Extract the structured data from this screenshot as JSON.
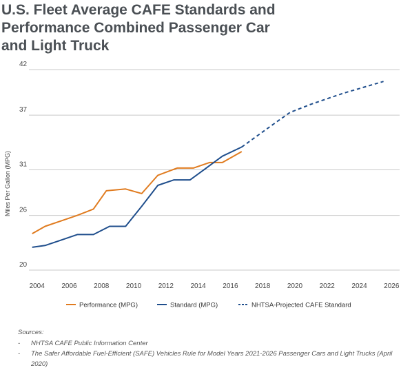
{
  "title_lines": [
    "U.S. Fleet Average CAFE Standards and",
    "Performance Combined Passenger Car",
    "and Light Truck"
  ],
  "chart_data": {
    "type": "line",
    "ylabel": "Miles Per Gallon (MPG)",
    "xlim": [
      2003.5,
      2026.5
    ],
    "ylim": [
      20,
      42
    ],
    "yticks": [
      20,
      26,
      31,
      37,
      42
    ],
    "xticks": [
      2004,
      2006,
      2008,
      2010,
      2012,
      2014,
      2016,
      2018,
      2020,
      2022,
      2024,
      2026
    ],
    "grid": "horizontal",
    "legend_position": "bottom",
    "series": [
      {
        "name": "Performance (MPG)",
        "color": "#e07b1f",
        "style": "solid",
        "points": [
          [
            2003.7,
            24.0
          ],
          [
            2004.5,
            24.8
          ],
          [
            2005.5,
            25.4
          ],
          [
            2006.5,
            26.0
          ],
          [
            2007.5,
            26.7
          ],
          [
            2008.3,
            28.7
          ],
          [
            2009.5,
            28.9
          ],
          [
            2010.5,
            28.4
          ],
          [
            2011.5,
            30.4
          ],
          [
            2012.7,
            31.2
          ],
          [
            2013.7,
            31.2
          ],
          [
            2014.7,
            31.8
          ],
          [
            2015.5,
            31.8
          ],
          [
            2016.7,
            33.0
          ]
        ]
      },
      {
        "name": "Standard (MPG)",
        "color": "#1f4e8c",
        "style": "solid",
        "points": [
          [
            2003.7,
            22.5
          ],
          [
            2004.5,
            22.7
          ],
          [
            2005.5,
            23.3
          ],
          [
            2006.5,
            23.9
          ],
          [
            2007.5,
            23.9
          ],
          [
            2008.5,
            24.8
          ],
          [
            2009.5,
            24.8
          ],
          [
            2010.5,
            27.0
          ],
          [
            2011.5,
            29.3
          ],
          [
            2012.5,
            29.9
          ],
          [
            2013.5,
            29.9
          ],
          [
            2014.5,
            31.2
          ],
          [
            2015.5,
            32.5
          ],
          [
            2016.7,
            33.5
          ]
        ]
      },
      {
        "name": "NHTSA-Projected CAFE Standard",
        "color": "#1f4e8c",
        "style": "dashed",
        "points": [
          [
            2016.7,
            33.5
          ],
          [
            2018.5,
            35.8
          ],
          [
            2019.7,
            37.3
          ],
          [
            2021.0,
            38.2
          ],
          [
            2023.0,
            39.4
          ],
          [
            2025.5,
            40.7
          ]
        ]
      }
    ]
  },
  "sources": {
    "heading": "Sources:",
    "items": [
      "NHTSA CAFE Public Information Center",
      "The Safer Affordable Fuel-Efficient (SAFE) Vehicles Rule for Model Years 2021-2026 Passenger Cars and Light Trucks (April 2020)"
    ],
    "dash": "-"
  }
}
